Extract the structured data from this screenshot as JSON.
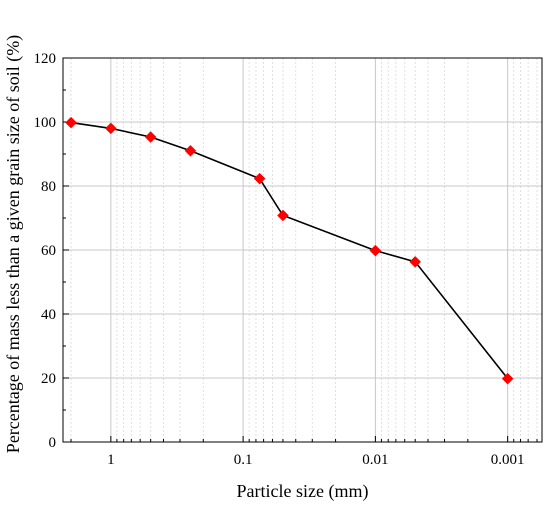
{
  "chart_data": {
    "type": "line",
    "title": "",
    "xlabel": "Particle size (mm)",
    "ylabel": "Percentage of mass less than a given grain size of soil (%)",
    "x_scale": "log",
    "x_reversed": true,
    "xlim": [
      2.3,
      0.00055
    ],
    "ylim": [
      0,
      120
    ],
    "x_ticks": [
      {
        "value": 1,
        "label": "1"
      },
      {
        "value": 0.1,
        "label": "0.1"
      },
      {
        "value": 0.01,
        "label": "0.01"
      },
      {
        "value": 0.001,
        "label": "0.001"
      }
    ],
    "y_ticks": [
      {
        "value": 0,
        "label": "0"
      },
      {
        "value": 20,
        "label": "20"
      },
      {
        "value": 40,
        "label": "40"
      },
      {
        "value": 60,
        "label": "60"
      },
      {
        "value": 80,
        "label": "80"
      },
      {
        "value": 100,
        "label": "100"
      },
      {
        "value": 120,
        "label": "120"
      }
    ],
    "grid": true,
    "series": [
      {
        "color": "#000000",
        "marker": "diamond",
        "marker_color": "#ff0000",
        "x": [
          2,
          1,
          0.5,
          0.25,
          0.075,
          0.05,
          0.01,
          0.005,
          0.001
        ],
        "y": [
          99.8,
          98,
          95.3,
          91,
          82.3,
          70.8,
          59.8,
          56.3,
          19.8
        ]
      }
    ]
  }
}
